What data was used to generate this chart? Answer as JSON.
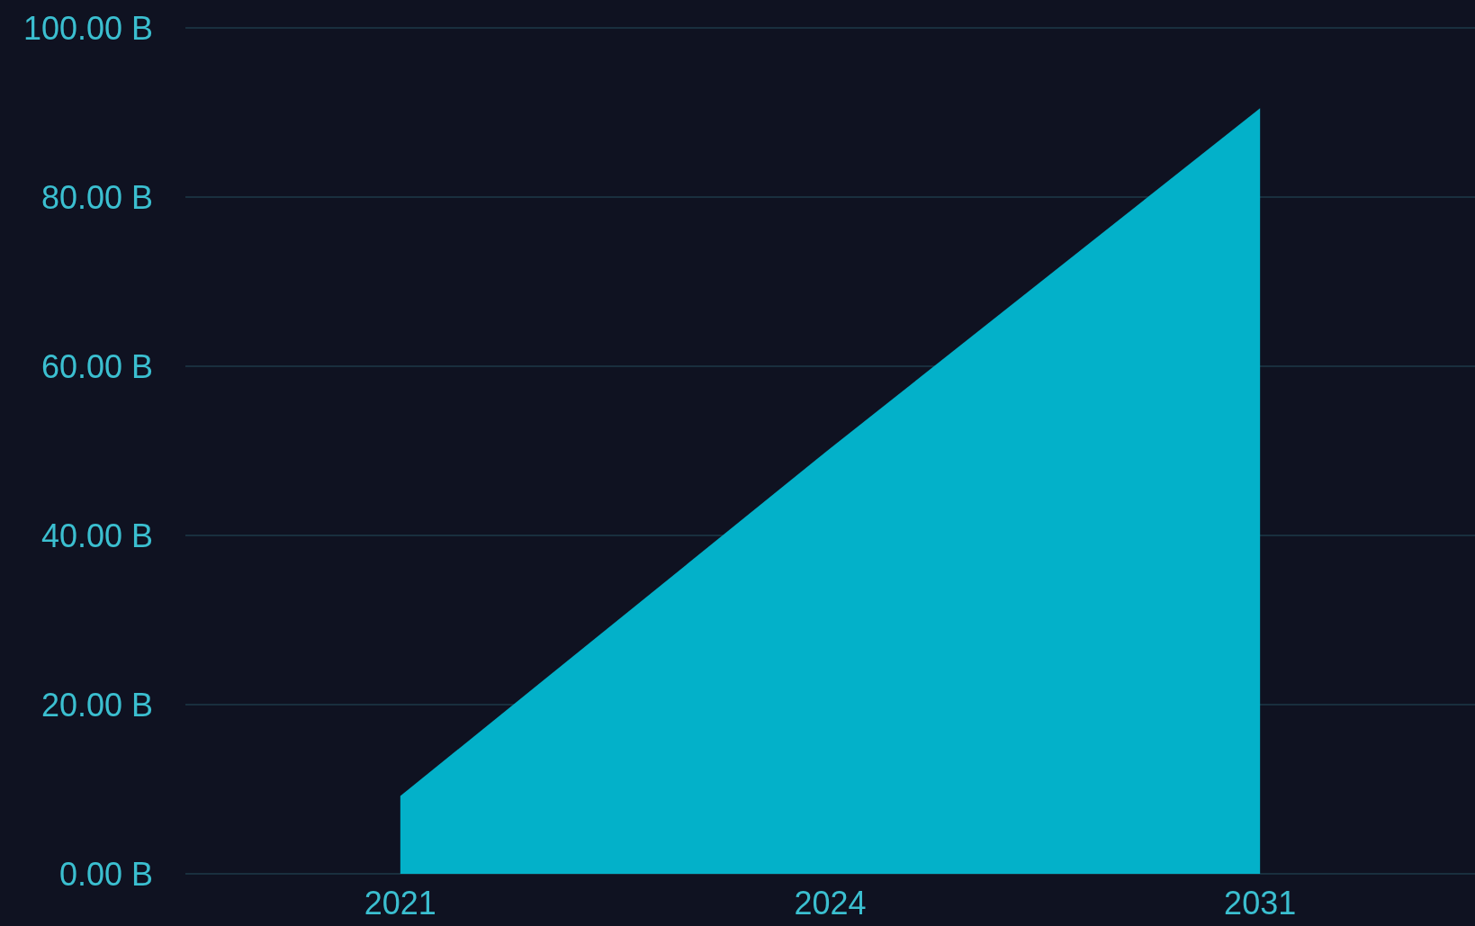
{
  "chart_data": {
    "type": "area",
    "categories": [
      "2021",
      "2024",
      "2031"
    ],
    "series": [
      {
        "color": "#03b1c9",
        "values": [
          9.2,
          50.3,
          90.5
        ]
      }
    ],
    "ylim": [
      0,
      100
    ],
    "yticks": [
      {
        "value": 0,
        "label": "0.00 B"
      },
      {
        "value": 20,
        "label": "20.00 B"
      },
      {
        "value": 40,
        "label": "40.00 B"
      },
      {
        "value": 60,
        "label": "60.00 B"
      },
      {
        "value": 80,
        "label": "80.00 B"
      },
      {
        "value": 100,
        "label": "100.00 B"
      }
    ],
    "grid": "y",
    "marker": "none"
  }
}
